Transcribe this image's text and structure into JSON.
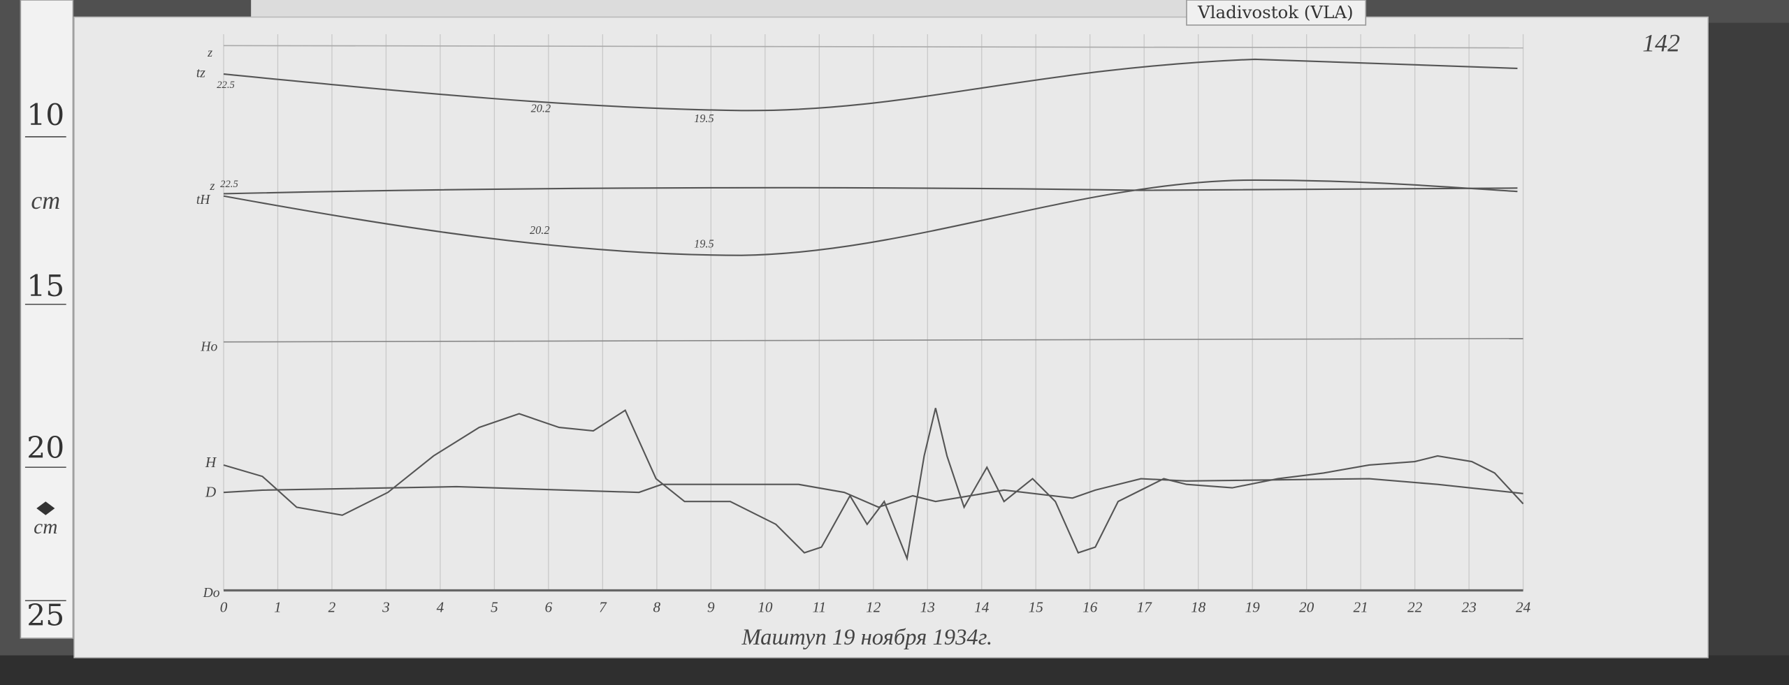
{
  "header": {
    "station": "Vladivostok (VLA)",
    "page_number": "142"
  },
  "ruler": {
    "labels": [
      "10",
      "cm",
      "15",
      "20",
      "cm",
      "25"
    ]
  },
  "magnetogram": {
    "trace_labels": {
      "z": "z",
      "tz": "tz",
      "tz_value": "22.5",
      "th_z": "z",
      "th": "tH",
      "th_value": "22.5",
      "ho": "Ho",
      "h": "H",
      "d": "D",
      "do": "Do"
    },
    "curve_notes": [
      "20.2",
      "19.5",
      "20.2",
      "19.5"
    ],
    "hour_labels": [
      "0",
      "1",
      "2",
      "3",
      "4",
      "5",
      "6",
      "7",
      "8",
      "9",
      "10",
      "11",
      "12",
      "13",
      "14",
      "15",
      "16",
      "17",
      "18",
      "19",
      "20",
      "21",
      "22",
      "23",
      "24"
    ],
    "caption": "Маштуп 19 ноября 1934г."
  }
}
